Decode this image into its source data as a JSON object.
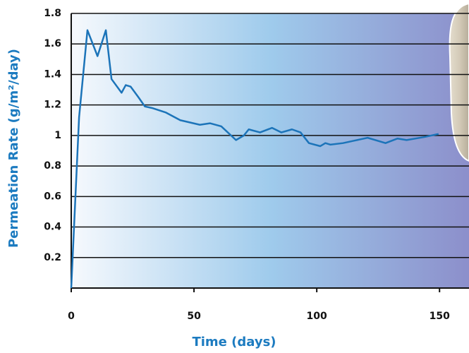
{
  "chart_data": {
    "type": "line",
    "xlabel": "Time (days)",
    "ylabel": "Permeation Rate (g/m²/day)",
    "x": [
      0,
      3.2,
      6.6,
      10.7,
      14.1,
      16.4,
      20.5,
      22.2,
      24.2,
      27.4,
      30,
      32.9,
      38.6,
      44.4,
      52.4,
      56.5,
      61.1,
      67.1,
      70.3,
      72.3,
      76.9,
      81.8,
      85.6,
      89.9,
      93.4,
      96.8,
      101.4,
      103.5,
      105.5,
      110.7,
      115,
      120.7,
      128,
      132.9,
      136.6,
      143.8,
      149.6
    ],
    "values": [
      0,
      1.12,
      1.69,
      1.52,
      1.69,
      1.37,
      1.28,
      1.33,
      1.32,
      1.25,
      1.19,
      1.18,
      1.15,
      1.1,
      1.07,
      1.08,
      1.06,
      0.97,
      1.0,
      1.04,
      1.02,
      1.05,
      1.02,
      1.04,
      1.02,
      0.95,
      0.93,
      0.95,
      0.94,
      0.95,
      0.965,
      0.985,
      0.95,
      0.98,
      0.97,
      0.99,
      1.01
    ],
    "color": "#1c74b9",
    "xlim": [
      0,
      162
    ],
    "ylim": [
      0,
      1.8
    ],
    "xticks": [
      0,
      50,
      100,
      150
    ],
    "yticks": [
      0.2,
      0.4,
      0.6,
      0.8,
      1,
      1.2,
      1.4,
      1.6,
      1.8
    ],
    "grid": true
  }
}
